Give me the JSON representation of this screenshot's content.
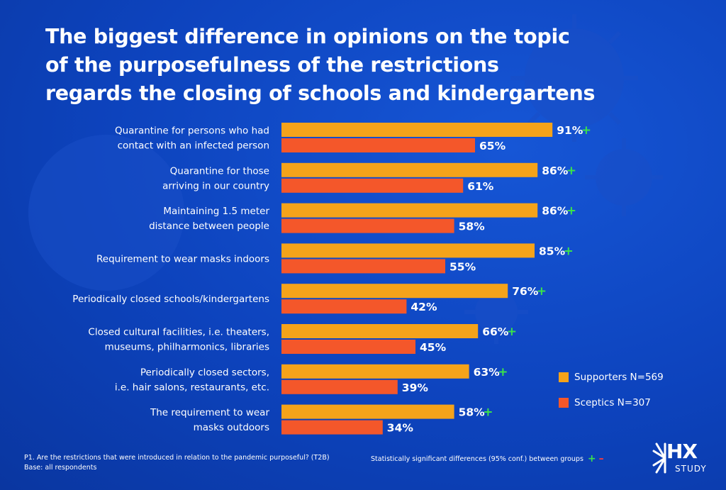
{
  "title_lines": [
    "The biggest difference in opinions on the topic",
    "of the purposefulness of the restrictions",
    "regards the closing of schools and kindergartens"
  ],
  "chart_data": {
    "type": "bar",
    "orientation": "horizontal",
    "categories": [
      [
        "Quarantine for persons who had",
        "contact with an infected person"
      ],
      [
        "Quarantine for those",
        "arriving in our country"
      ],
      [
        "Maintaining 1.5 meter",
        "distance between people"
      ],
      [
        "Requirement to wear masks indoors"
      ],
      [
        "Periodically closed schools/kindergartens"
      ],
      [
        "Closed cultural facilities, i.e. theaters,",
        "museums, philharmonics, libraries"
      ],
      [
        "Periodically closed sectors,",
        "i.e. hair salons, restaurants, etc."
      ],
      [
        "The requirement to wear",
        "masks outdoors"
      ]
    ],
    "series": [
      {
        "name": "Supporters N=569",
        "color": "#f5a31a",
        "values": [
          91,
          86,
          86,
          85,
          76,
          66,
          63,
          58
        ],
        "labels": [
          "91%",
          "86%",
          "86%",
          "85%",
          "76%",
          "66%",
          "63%",
          "58%"
        ],
        "significance": [
          "+",
          "+",
          "+",
          "+",
          "+",
          "+",
          "+",
          "+"
        ]
      },
      {
        "name": "Sceptics N=307",
        "color": "#f4572a",
        "values": [
          65,
          61,
          58,
          55,
          42,
          45,
          39,
          34
        ],
        "labels": [
          "65%",
          "61%",
          "58%",
          "55%",
          "42%",
          "45%",
          "39%",
          "34%"
        ],
        "significance": [
          "",
          "",
          "",
          "",
          "",
          "",
          "",
          ""
        ]
      }
    ],
    "xlim": [
      0,
      100
    ],
    "legend": "right",
    "grid": false
  },
  "significance_colors": {
    "plus": "#3be24a",
    "minus": "#ff3b3b"
  },
  "footnote": {
    "question": "P1. Are the restrictions that were introduced in relation to the pandemic purposeful? (T2B)",
    "base": "Base: all respondents"
  },
  "significance_note": {
    "text": "Statistically significant differences (95% conf.) between groups",
    "plus": "+",
    "minus": "–"
  },
  "logo": {
    "main": "HX",
    "sub": "STUDY"
  }
}
